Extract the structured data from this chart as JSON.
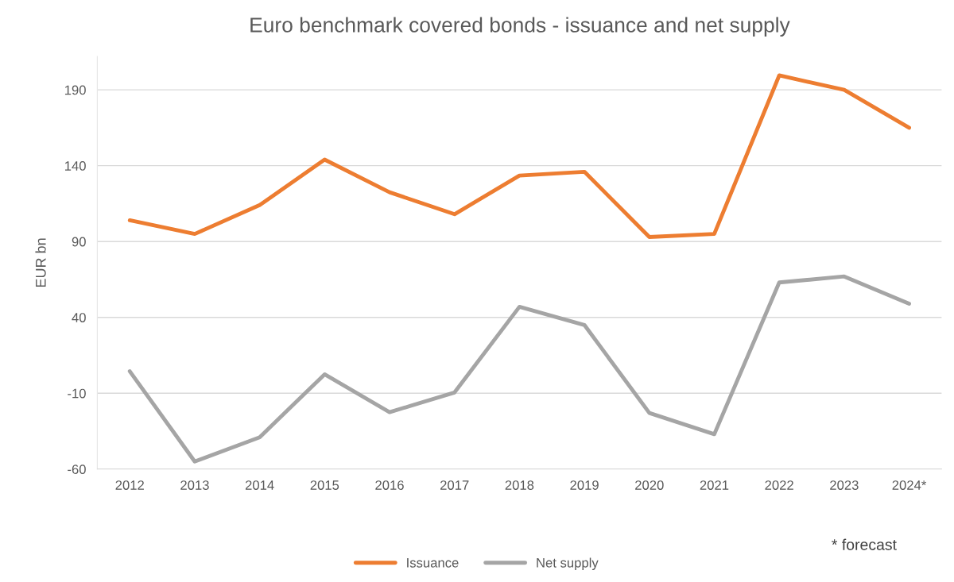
{
  "chart_data": {
    "type": "line",
    "title": "Euro benchmark covered bonds - issuance and net supply",
    "ylabel": "EUR bn",
    "categories": [
      "2012",
      "2013",
      "2014",
      "2015",
      "2016",
      "2017",
      "2018",
      "2019",
      "2020",
      "2021",
      "2022",
      "2023",
      "2024*"
    ],
    "series": [
      {
        "name": "Issuance",
        "color": "#ed7d31",
        "values": [
          104,
          95,
          114,
          144,
          122.5,
          108,
          133.5,
          136,
          93,
          95,
          199.5,
          190,
          165
        ]
      },
      {
        "name": "Net supply",
        "color": "#a5a5a5",
        "values": [
          4.5,
          -55,
          -39,
          2.5,
          -22.5,
          -9.5,
          47,
          35,
          -23,
          -37,
          63,
          67,
          49
        ]
      }
    ],
    "ylim": [
      -60,
      212
    ],
    "yticks": [
      -60,
      -10,
      40,
      90,
      140,
      190
    ],
    "grid": "y",
    "legend": "bottom",
    "marker": "none",
    "line_style": "solid",
    "annotations": [
      "* forecast"
    ]
  }
}
